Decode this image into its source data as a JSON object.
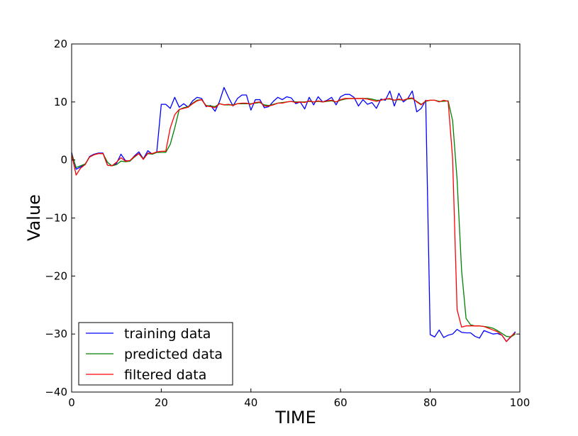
{
  "chart_data": {
    "type": "line",
    "title": "",
    "xlabel": "TIME",
    "ylabel": "Value",
    "xlim": [
      0,
      100
    ],
    "ylim": [
      -40,
      20
    ],
    "xticks": [
      0,
      20,
      40,
      60,
      80,
      100
    ],
    "yticks": [
      -40,
      -30,
      -20,
      -10,
      0,
      10,
      20
    ],
    "grid": false,
    "legend_position": "lower-left",
    "x": [
      0,
      1,
      2,
      3,
      4,
      5,
      6,
      7,
      8,
      9,
      10,
      11,
      12,
      13,
      14,
      15,
      16,
      17,
      18,
      19,
      20,
      21,
      22,
      23,
      24,
      25,
      26,
      27,
      28,
      29,
      30,
      31,
      32,
      33,
      34,
      35,
      36,
      37,
      38,
      39,
      40,
      41,
      42,
      43,
      44,
      45,
      46,
      47,
      48,
      49,
      50,
      51,
      52,
      53,
      54,
      55,
      56,
      57,
      58,
      59,
      60,
      61,
      62,
      63,
      64,
      65,
      66,
      67,
      68,
      69,
      70,
      71,
      72,
      73,
      74,
      75,
      76,
      77,
      78,
      79,
      80,
      81,
      82,
      83,
      84,
      85,
      86,
      87,
      88,
      89,
      90,
      91,
      92,
      93,
      94,
      95,
      96,
      97,
      98,
      99
    ],
    "series": [
      {
        "name": "training data",
        "color": "#0000ff",
        "values": [
          1.3,
          -1.6,
          -1.2,
          -0.8,
          0.6,
          1.0,
          1.2,
          1.2,
          -0.9,
          -1.0,
          -0.6,
          1.0,
          -0.1,
          -0.2,
          0.7,
          1.4,
          0.2,
          1.6,
          1.0,
          1.4,
          9.6,
          9.6,
          8.9,
          10.8,
          9.1,
          9.7,
          9.1,
          10.2,
          10.8,
          10.6,
          9.2,
          9.4,
          8.4,
          10.1,
          12.5,
          10.8,
          9.3,
          10.6,
          11.2,
          11.2,
          8.6,
          10.4,
          10.4,
          9.0,
          9.2,
          10.1,
          10.8,
          10.4,
          10.9,
          10.7,
          9.7,
          10.0,
          8.8,
          10.8,
          9.5,
          10.9,
          10.0,
          10.3,
          10.8,
          9.5,
          10.9,
          11.3,
          11.3,
          10.8,
          9.3,
          10.4,
          9.6,
          9.9,
          8.9,
          10.5,
          10.3,
          11.9,
          9.3,
          11.5,
          10.0,
          10.6,
          11.9,
          8.3,
          8.9,
          10.3,
          -30.1,
          -30.5,
          -29.3,
          -30.6,
          -30.2,
          -30.0,
          -29.2,
          -29.7,
          -29.8,
          -29.8,
          -30.4,
          -30.7,
          -29.4,
          -29.7,
          -30.0,
          -29.9,
          -30.2,
          -31.3,
          -30.5,
          -29.6
        ]
      },
      {
        "name": "predicted data",
        "color": "#008000",
        "values": [
          1.1,
          -1.3,
          -1.0,
          -0.7,
          0.5,
          0.9,
          1.1,
          1.1,
          -0.4,
          -1.0,
          -0.8,
          -0.2,
          -0.3,
          -0.2,
          0.5,
          1.1,
          0.2,
          1.1,
          1.0,
          1.3,
          1.3,
          1.3,
          2.7,
          5.5,
          8.7,
          9.0,
          9.2,
          9.8,
          10.3,
          10.4,
          9.4,
          9.3,
          9.2,
          9.7,
          9.5,
          9.5,
          9.5,
          9.7,
          9.7,
          9.7,
          9.7,
          9.8,
          9.9,
          9.5,
          9.4,
          9.6,
          9.8,
          9.9,
          10.0,
          10.1,
          10.0,
          10.0,
          10.0,
          10.1,
          10.0,
          10.1,
          10.0,
          10.1,
          10.2,
          10.0,
          10.3,
          10.5,
          10.6,
          10.6,
          10.6,
          10.6,
          10.6,
          10.5,
          10.3,
          10.3,
          10.5,
          10.5,
          10.3,
          10.4,
          10.3,
          10.5,
          10.6,
          10.1,
          9.6,
          10.1,
          10.3,
          10.3,
          10.1,
          10.1,
          10.2,
          6.8,
          -3.4,
          -19.0,
          -27.3,
          -28.4,
          -28.6,
          -28.6,
          -28.7,
          -28.8,
          -29.0,
          -29.4,
          -29.9,
          -30.4,
          -30.5,
          -30.0
        ]
      },
      {
        "name": "filtered data",
        "color": "#ff0000",
        "values": [
          1.0,
          -2.6,
          -1.4,
          -0.8,
          0.5,
          0.9,
          1.1,
          1.1,
          -0.9,
          -1.0,
          -0.4,
          0.4,
          -0.2,
          -0.1,
          0.6,
          1.1,
          0.1,
          1.2,
          1.1,
          1.4,
          1.5,
          1.5,
          5.5,
          7.8,
          8.7,
          8.9,
          9.1,
          9.7,
          10.2,
          10.4,
          9.3,
          9.2,
          9.0,
          9.7,
          9.5,
          9.6,
          9.4,
          9.7,
          9.8,
          9.8,
          9.6,
          9.9,
          10.0,
          9.3,
          9.3,
          9.5,
          9.8,
          9.8,
          10.0,
          10.1,
          9.9,
          10.0,
          9.9,
          10.2,
          10.0,
          10.2,
          10.0,
          10.2,
          10.3,
          10.0,
          10.4,
          10.6,
          10.6,
          10.6,
          10.6,
          10.6,
          10.5,
          10.3,
          10.1,
          10.3,
          10.5,
          10.6,
          10.3,
          10.5,
          10.3,
          10.6,
          10.7,
          10.0,
          9.5,
          10.2,
          10.3,
          10.3,
          10.0,
          10.3,
          10.1,
          0.3,
          -25.8,
          -28.8,
          -28.6,
          -28.6,
          -28.6,
          -28.6,
          -28.7,
          -29.0,
          -29.3,
          -29.6,
          -30.2,
          -31.3,
          -30.4,
          -29.8
        ]
      }
    ]
  }
}
